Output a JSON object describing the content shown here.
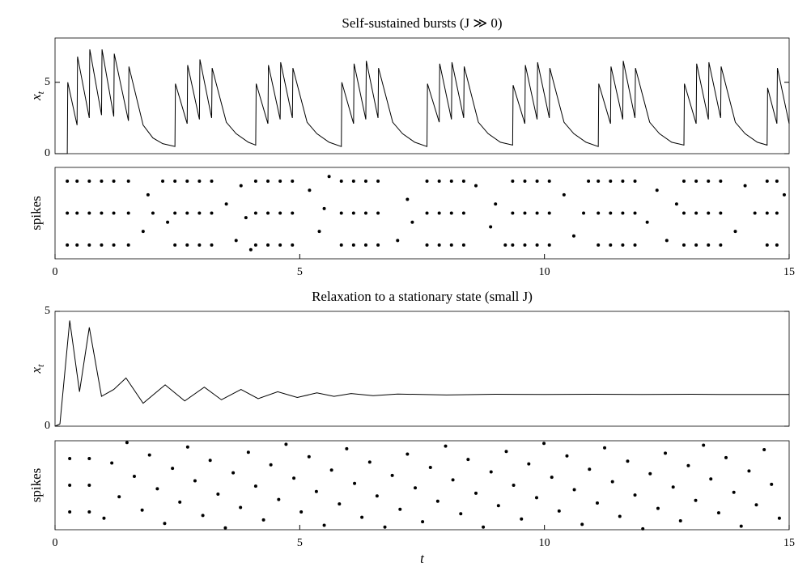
{
  "chart_data": [
    {
      "type": "line",
      "title": "Self-sustained bursts (J ≫ 0)",
      "ylabel": {
        "base": "x",
        "sub": "t"
      },
      "color": "#000000",
      "xlim": [
        0,
        15
      ],
      "ylim": [
        0,
        8.1
      ],
      "yticks": [
        0,
        5
      ],
      "x": [
        0,
        0.25,
        0.26,
        0.45,
        0.46,
        0.7,
        0.71,
        0.95,
        0.96,
        1.2,
        1.21,
        1.5,
        1.51,
        1.8,
        2.0,
        2.2,
        2.45,
        2.46,
        2.7,
        2.71,
        2.95,
        2.96,
        3.2,
        3.21,
        3.5,
        3.7,
        3.95,
        4.1,
        4.11,
        4.35,
        4.36,
        4.6,
        4.61,
        4.85,
        4.86,
        5.15,
        5.35,
        5.6,
        5.85,
        5.86,
        6.1,
        6.11,
        6.35,
        6.36,
        6.6,
        6.61,
        6.9,
        7.1,
        7.35,
        7.6,
        7.61,
        7.85,
        7.86,
        8.1,
        8.11,
        8.35,
        8.36,
        8.65,
        8.85,
        9.1,
        9.35,
        9.36,
        9.6,
        9.61,
        9.85,
        9.86,
        10.1,
        10.11,
        10.4,
        10.6,
        10.85,
        11.1,
        11.11,
        11.35,
        11.36,
        11.6,
        11.61,
        11.85,
        11.86,
        12.15,
        12.35,
        12.6,
        12.85,
        12.86,
        13.1,
        13.11,
        13.35,
        13.36,
        13.6,
        13.61,
        13.9,
        14.1,
        14.35,
        14.55,
        14.56,
        14.75,
        14.76,
        15.0
      ],
      "values": [
        0,
        0,
        5.0,
        2.0,
        6.8,
        2.5,
        7.3,
        2.7,
        7.3,
        2.6,
        7.0,
        2.3,
        6.1,
        2.0,
        1.1,
        0.7,
        0.5,
        4.9,
        2.1,
        6.2,
        2.4,
        6.6,
        2.5,
        6.0,
        2.2,
        1.4,
        0.8,
        0.6,
        4.9,
        2.1,
        6.2,
        2.4,
        6.4,
        2.5,
        6.0,
        2.2,
        1.4,
        0.8,
        0.5,
        5.0,
        2.1,
        6.3,
        2.4,
        6.5,
        2.5,
        6.0,
        2.2,
        1.4,
        0.8,
        0.5,
        4.9,
        2.2,
        6.3,
        2.4,
        6.4,
        2.5,
        6.1,
        2.2,
        1.4,
        0.8,
        0.6,
        4.8,
        2.1,
        6.2,
        2.4,
        6.4,
        2.5,
        6.0,
        2.2,
        1.4,
        0.8,
        0.5,
        4.9,
        2.1,
        6.1,
        2.4,
        6.5,
        2.5,
        6.0,
        2.2,
        1.4,
        0.8,
        0.6,
        4.9,
        2.1,
        6.3,
        2.4,
        6.4,
        2.5,
        6.1,
        2.2,
        1.4,
        0.8,
        0.6,
        4.6,
        2.1,
        6.0,
        2.1
      ]
    },
    {
      "type": "scatter",
      "ylabel": "spikes",
      "color": "#000000",
      "xlim": [
        0,
        15
      ],
      "ylim": [
        0,
        1
      ],
      "xticks": [
        0,
        5,
        10,
        15
      ],
      "x": [
        0.25,
        0.25,
        0.25,
        0.45,
        0.45,
        0.45,
        0.7,
        0.7,
        0.7,
        0.95,
        0.95,
        0.95,
        1.2,
        1.2,
        1.2,
        1.5,
        1.5,
        1.5,
        2.45,
        2.45,
        2.45,
        2.7,
        2.7,
        2.7,
        2.95,
        2.95,
        2.95,
        3.2,
        3.2,
        3.2,
        4.1,
        4.1,
        4.1,
        4.35,
        4.35,
        4.35,
        4.6,
        4.6,
        4.6,
        4.85,
        4.85,
        4.85,
        5.85,
        5.85,
        5.85,
        6.1,
        6.1,
        6.1,
        6.35,
        6.35,
        6.35,
        6.6,
        6.6,
        6.6,
        7.6,
        7.6,
        7.6,
        7.85,
        7.85,
        7.85,
        8.1,
        8.1,
        8.1,
        8.35,
        8.35,
        8.35,
        9.35,
        9.35,
        9.35,
        9.6,
        9.6,
        9.6,
        9.85,
        9.85,
        9.85,
        10.1,
        10.1,
        10.1,
        11.1,
        11.1,
        11.1,
        11.35,
        11.35,
        11.35,
        11.6,
        11.6,
        11.6,
        11.85,
        11.85,
        11.85,
        12.85,
        12.85,
        12.85,
        13.1,
        13.1,
        13.1,
        13.35,
        13.35,
        13.35,
        13.6,
        13.6,
        13.6,
        14.55,
        14.55,
        14.55,
        14.75,
        14.75,
        14.75,
        1.8,
        1.9,
        2.0,
        2.2,
        2.3,
        3.5,
        3.7,
        3.8,
        3.9,
        4.0,
        5.2,
        5.4,
        5.5,
        5.6,
        7.0,
        7.2,
        7.3,
        8.6,
        8.9,
        9.0,
        9.2,
        10.4,
        10.6,
        10.8,
        10.9,
        12.1,
        12.3,
        12.5,
        12.7,
        13.9,
        14.1,
        14.3,
        14.9
      ],
      "values": [
        0.15,
        0.5,
        0.85,
        0.15,
        0.5,
        0.85,
        0.15,
        0.5,
        0.85,
        0.15,
        0.5,
        0.85,
        0.15,
        0.5,
        0.85,
        0.15,
        0.5,
        0.85,
        0.15,
        0.5,
        0.85,
        0.15,
        0.5,
        0.85,
        0.15,
        0.5,
        0.85,
        0.15,
        0.5,
        0.85,
        0.15,
        0.5,
        0.85,
        0.15,
        0.5,
        0.85,
        0.15,
        0.5,
        0.85,
        0.15,
        0.5,
        0.85,
        0.15,
        0.5,
        0.85,
        0.15,
        0.5,
        0.85,
        0.15,
        0.5,
        0.85,
        0.15,
        0.5,
        0.85,
        0.15,
        0.5,
        0.85,
        0.15,
        0.5,
        0.85,
        0.15,
        0.5,
        0.85,
        0.15,
        0.5,
        0.85,
        0.15,
        0.5,
        0.85,
        0.15,
        0.5,
        0.85,
        0.15,
        0.5,
        0.85,
        0.15,
        0.5,
        0.85,
        0.15,
        0.5,
        0.85,
        0.15,
        0.5,
        0.85,
        0.15,
        0.5,
        0.85,
        0.15,
        0.5,
        0.85,
        0.15,
        0.5,
        0.85,
        0.15,
        0.5,
        0.85,
        0.15,
        0.5,
        0.85,
        0.15,
        0.5,
        0.85,
        0.15,
        0.5,
        0.85,
        0.15,
        0.5,
        0.85,
        0.3,
        0.7,
        0.5,
        0.85,
        0.4,
        0.6,
        0.2,
        0.8,
        0.45,
        0.1,
        0.75,
        0.3,
        0.55,
        0.9,
        0.2,
        0.65,
        0.4,
        0.8,
        0.35,
        0.6,
        0.15,
        0.7,
        0.25,
        0.5,
        0.85,
        0.4,
        0.75,
        0.2,
        0.6,
        0.3,
        0.8,
        0.5,
        0.7
      ]
    },
    {
      "type": "line",
      "title": "Relaxation to a stationary state (small J)",
      "ylabel": {
        "base": "x",
        "sub": "t"
      },
      "color": "#000000",
      "xlim": [
        0,
        15
      ],
      "ylim": [
        0,
        5
      ],
      "yticks": [
        0,
        5
      ],
      "x": [
        0,
        0.1,
        0.3,
        0.5,
        0.7,
        0.95,
        1.2,
        1.45,
        1.8,
        2.25,
        2.65,
        3.05,
        3.4,
        3.8,
        4.15,
        4.55,
        4.95,
        5.35,
        5.7,
        6.05,
        6.5,
        7.0,
        8,
        9,
        10,
        11,
        12,
        13,
        14,
        15
      ],
      "values": [
        0,
        0.1,
        4.6,
        1.5,
        4.3,
        1.3,
        1.6,
        2.1,
        1.0,
        1.8,
        1.1,
        1.7,
        1.15,
        1.6,
        1.2,
        1.5,
        1.25,
        1.45,
        1.3,
        1.42,
        1.33,
        1.4,
        1.36,
        1.39,
        1.38,
        1.39,
        1.38,
        1.39,
        1.38,
        1.38
      ]
    },
    {
      "type": "scatter",
      "ylabel": "spikes",
      "xlabel": "t",
      "color": "#000000",
      "xlim": [
        0,
        15
      ],
      "ylim": [
        0,
        1
      ],
      "xticks": [
        0,
        5,
        10,
        15
      ],
      "x": [
        0.3,
        0.3,
        0.3,
        0.7,
        0.7,
        0.7,
        1.0,
        1.16,
        1.31,
        1.47,
        1.62,
        1.78,
        1.93,
        2.09,
        2.24,
        2.4,
        2.55,
        2.71,
        2.86,
        3.02,
        3.17,
        3.33,
        3.48,
        3.64,
        3.79,
        3.95,
        4.1,
        4.26,
        4.41,
        4.57,
        4.72,
        4.88,
        5.03,
        5.19,
        5.34,
        5.5,
        5.65,
        5.81,
        5.96,
        6.12,
        6.27,
        6.43,
        6.58,
        6.74,
        6.89,
        7.05,
        7.2,
        7.36,
        7.51,
        7.67,
        7.82,
        7.98,
        8.13,
        8.29,
        8.44,
        8.6,
        8.75,
        8.91,
        9.06,
        9.22,
        9.37,
        9.53,
        9.68,
        9.84,
        9.99,
        10.15,
        10.3,
        10.46,
        10.61,
        10.77,
        10.92,
        11.08,
        11.23,
        11.39,
        11.54,
        11.7,
        11.85,
        12.01,
        12.16,
        12.32,
        12.47,
        12.63,
        12.78,
        12.94,
        13.09,
        13.25,
        13.4,
        13.56,
        13.71,
        13.87,
        14.02,
        14.18,
        14.33,
        14.49,
        14.64,
        14.8
      ],
      "values": [
        0.2,
        0.5,
        0.8,
        0.2,
        0.5,
        0.8,
        0.13,
        0.75,
        0.37,
        0.98,
        0.6,
        0.22,
        0.84,
        0.46,
        0.07,
        0.69,
        0.31,
        0.93,
        0.55,
        0.16,
        0.78,
        0.4,
        0.02,
        0.64,
        0.25,
        0.87,
        0.49,
        0.11,
        0.73,
        0.34,
        0.96,
        0.58,
        0.2,
        0.82,
        0.43,
        0.05,
        0.67,
        0.29,
        0.91,
        0.52,
        0.14,
        0.76,
        0.38,
        0.03,
        0.61,
        0.23,
        0.85,
        0.47,
        0.09,
        0.7,
        0.32,
        0.94,
        0.56,
        0.18,
        0.79,
        0.41,
        0.03,
        0.65,
        0.27,
        0.88,
        0.5,
        0.12,
        0.74,
        0.36,
        0.97,
        0.59,
        0.21,
        0.83,
        0.45,
        0.06,
        0.68,
        0.3,
        0.92,
        0.54,
        0.15,
        0.77,
        0.39,
        0.01,
        0.63,
        0.24,
        0.86,
        0.48,
        0.1,
        0.72,
        0.33,
        0.95,
        0.57,
        0.19,
        0.81,
        0.42,
        0.04,
        0.66,
        0.28,
        0.9,
        0.51,
        0.13
      ]
    }
  ]
}
